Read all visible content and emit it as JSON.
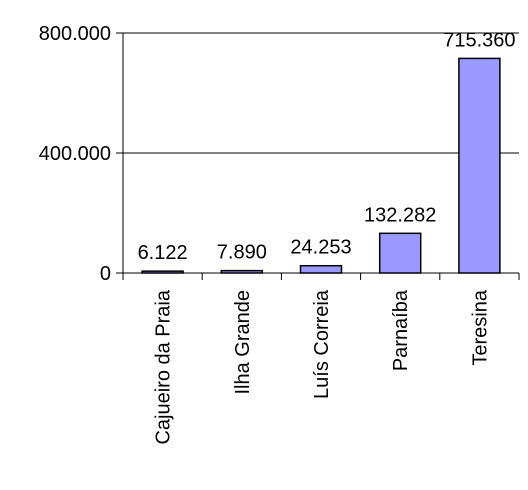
{
  "chart_data": {
    "type": "bar",
    "categories": [
      "Cajueiro da Praia",
      "Ilha Grande",
      "Luís Correia",
      "Parnaíba",
      "Teresina"
    ],
    "values": [
      6122,
      7890,
      24253,
      132282,
      715360
    ],
    "data_labels": [
      "6.122",
      "7.890",
      "24.253",
      "132.282",
      "715.360"
    ],
    "ylim": [
      0,
      800000
    ],
    "yticks": [
      0,
      400000,
      800000
    ],
    "ytick_labels": [
      "0",
      "400.000",
      "800.000"
    ],
    "grid": true,
    "legend": "none",
    "bar_color": "#9999ff",
    "bar_border_color": "#000000"
  }
}
